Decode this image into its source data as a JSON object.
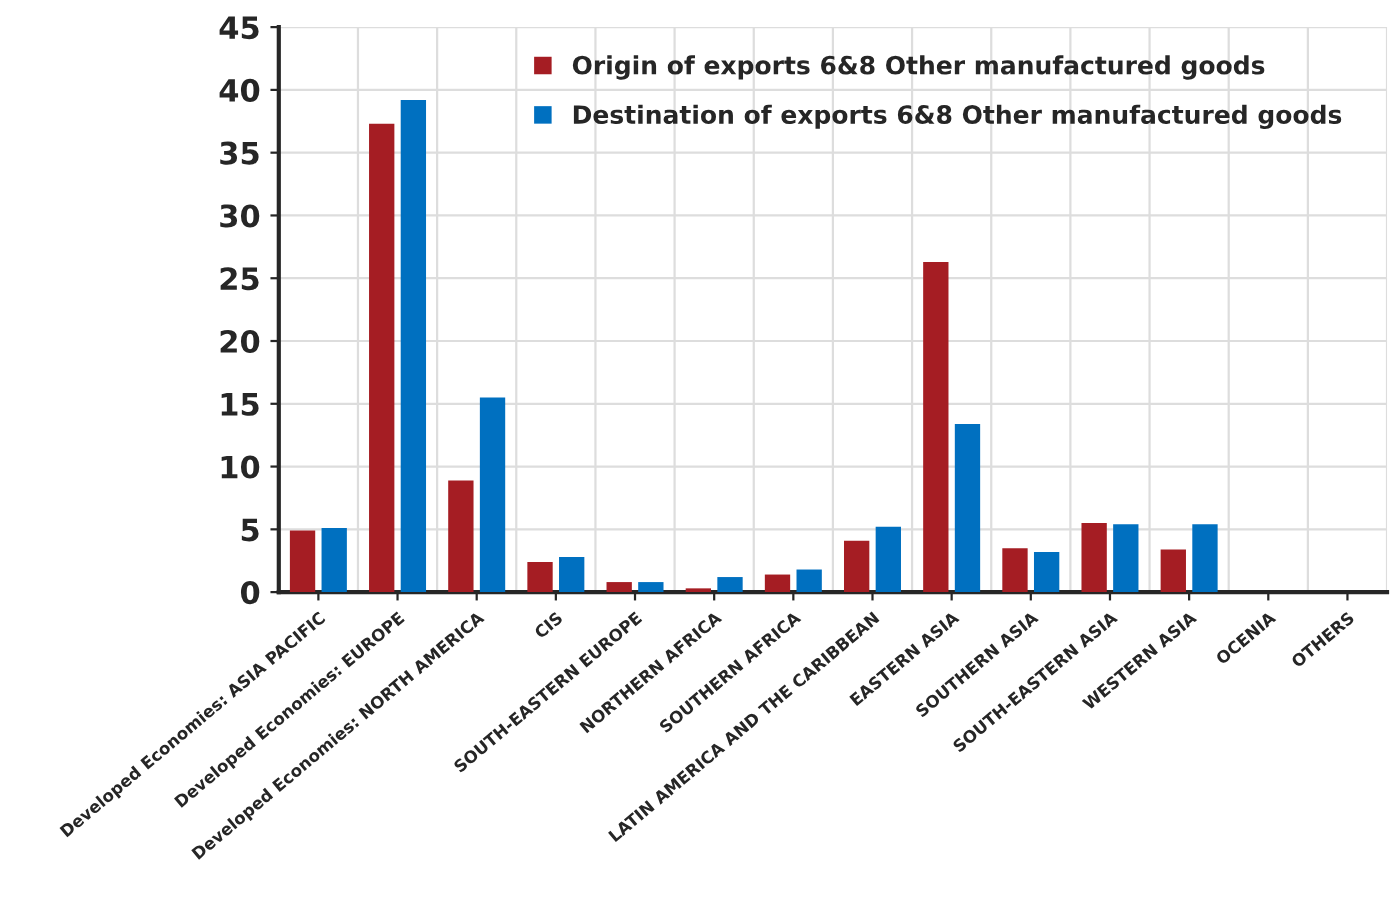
{
  "chart_data": {
    "type": "bar",
    "categories": [
      "Developed Economies: ASIA PACIFIC",
      "Developed Economies: EUROPE",
      "Developed Economies: NORTH AMERICA",
      "CIS",
      "SOUTH-EASTERN EUROPE",
      "NORTHERN AFRICA",
      "SOUTHERN AFRICA",
      "LATIN AMERICA AND THE CARIBBEAN",
      "EASTERN ASIA",
      "SOUTHERN ASIA",
      "SOUTH-EASTERN ASIA",
      "WESTERN ASIA",
      "OCENIA",
      "OTHERS"
    ],
    "series": [
      {
        "name": "Origin of exports 6&8 Other manufactured goods",
        "color": "#a51d23",
        "values": [
          4.9,
          37.3,
          8.9,
          2.4,
          0.8,
          0.3,
          1.4,
          4.1,
          26.3,
          3.5,
          5.5,
          3.4,
          0,
          0
        ]
      },
      {
        "name": "Destination of exports 6&8 Other manufactured goods",
        "color": "#0070c0",
        "values": [
          5.1,
          39.2,
          15.5,
          2.8,
          0.8,
          1.2,
          1.8,
          5.2,
          13.4,
          3.2,
          5.4,
          5.4,
          0,
          0
        ]
      }
    ],
    "ylim": [
      0,
      45
    ],
    "yticks": [
      0,
      5,
      10,
      15,
      20,
      25,
      30,
      35,
      40,
      45
    ],
    "grid": true,
    "legend": "top right"
  }
}
